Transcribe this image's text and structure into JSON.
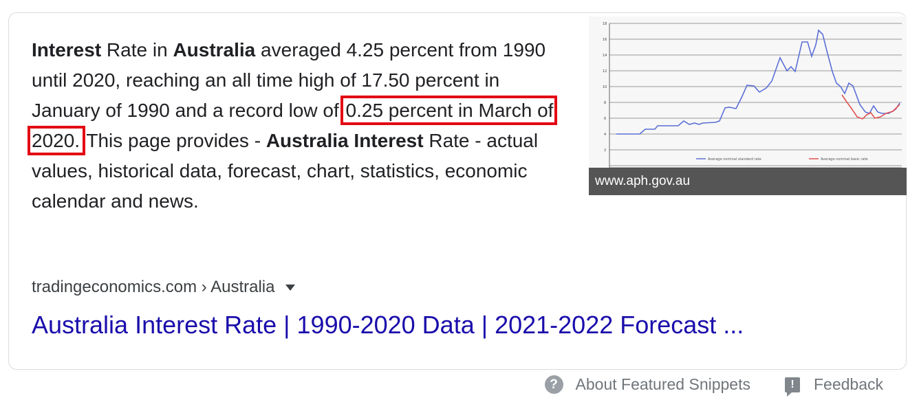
{
  "snippet": {
    "w1": "Interest",
    "t1": " Rate in ",
    "w2": "Australia",
    "t2": " averaged 4.25 percent from 1990 until 2020, reaching an all time high of 17.50 percent in January of 1990 and a record low of ",
    "highlight": "0.25 percent in March of 2020.",
    "t3": " This page provides - ",
    "w3": "Australia Interest",
    "t4": " Rate - actual values, historical data, forecast, chart, statistics, economic calendar and news."
  },
  "thumbnail": {
    "caption": "www.aph.gov.au",
    "colors": {
      "standard_line": "#5a6fd6",
      "basic_line": "#e05050"
    }
  },
  "result": {
    "breadcrumb": "tradingeconomics.com › Australia",
    "title": "Australia Interest Rate | 1990-2020 Data | 2021-2022 Forecast ..."
  },
  "footer": {
    "about": "About Featured Snippets",
    "about_icon": "help-circle-icon",
    "feedback": "Feedback",
    "feedback_icon": "feedback-icon"
  }
}
